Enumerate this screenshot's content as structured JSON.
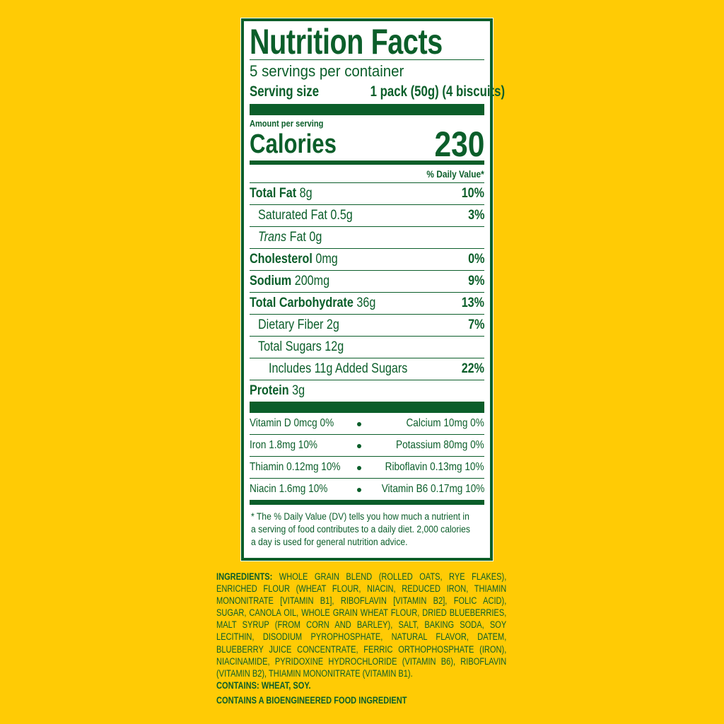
{
  "colors": {
    "background": "#FFCB05",
    "label_green": "#0B5E2A",
    "panel": "#FFFFFF"
  },
  "title": "Nutrition Facts",
  "servings_per_container": "5 servings per container",
  "serving_size": {
    "label": "Serving size",
    "value": "1 pack (50g) (4 biscuits)"
  },
  "amount_per_serving": "Amount per serving",
  "calories": {
    "label": "Calories",
    "value": "230"
  },
  "daily_value_header": "% Daily Value*",
  "nutrients": [
    {
      "name": "Total Fat",
      "amount": "8g",
      "dv": "10%"
    },
    {
      "name": "Saturated Fat",
      "amount": "0.5g",
      "dv": "3%"
    },
    {
      "name": "Trans",
      "name_rest": "Fat",
      "amount": "0g",
      "dv": ""
    },
    {
      "name": "Cholesterol",
      "amount": "0mg",
      "dv": "0%"
    },
    {
      "name": "Sodium",
      "amount": "200mg",
      "dv": "9%"
    },
    {
      "name": "Total Carbohydrate",
      "amount": "36g",
      "dv": "13%"
    },
    {
      "name": "Dietary Fiber",
      "amount": "2g",
      "dv": "7%"
    },
    {
      "name": "Total Sugars",
      "amount": "12g",
      "dv": ""
    },
    {
      "name": "Includes 11g Added Sugars",
      "amount": "",
      "dv": "22%"
    },
    {
      "name": "Protein",
      "amount": "3g",
      "dv": ""
    }
  ],
  "vitamins": [
    {
      "left": "Vitamin D 0mcg 0%",
      "right": "Calcium 10mg 0%"
    },
    {
      "left": "Iron 1.8mg 10%",
      "right": "Potassium 80mg 0%"
    },
    {
      "left": "Thiamin 0.12mg 10%",
      "right": "Riboflavin 0.13mg 10%"
    },
    {
      "left": "Niacin 1.6mg 10%",
      "right": "Vitamin B6 0.17mg 10%"
    }
  ],
  "footnote": "* The % Daily Value (DV) tells you how much a nutrient in a serving of food contributes to a daily diet. 2,000 calories a day is used for general nutrition advice.",
  "ingredients": {
    "label": "INGREDIENTS:",
    "text": "WHOLE GRAIN BLEND (ROLLED OATS, RYE FLAKES), ENRICHED FLOUR (WHEAT FLOUR, NIACIN, REDUCED IRON, THIAMIN MONONITRATE [VITAMIN B1], RIBOFLAVIN [VITAMIN B2], FOLIC ACID), SUGAR, CANOLA OIL, WHOLE GRAIN WHEAT FLOUR, DRIED BLUEBERRIES, MALT SYRUP (FROM CORN AND BARLEY), SALT, BAKING SODA, SOY LECITHIN, DISODIUM PYROPHOSPHATE, NATURAL FLAVOR, DATEM, BLUEBERRY JUICE CONCENTRATE, FERRIC ORTHOPHOSPHATE (IRON), NIACINAMIDE, PYRIDOXINE HYDROCHLORIDE (VITAMIN B6), RIBOFLAVIN (VITAMIN B2), THIAMIN MONONITRATE (VITAMIN B1).",
    "contains": "CONTAINS: WHEAT, SOY.",
    "bioengineered": "CONTAINS A BIOENGINEERED FOOD INGREDIENT"
  }
}
